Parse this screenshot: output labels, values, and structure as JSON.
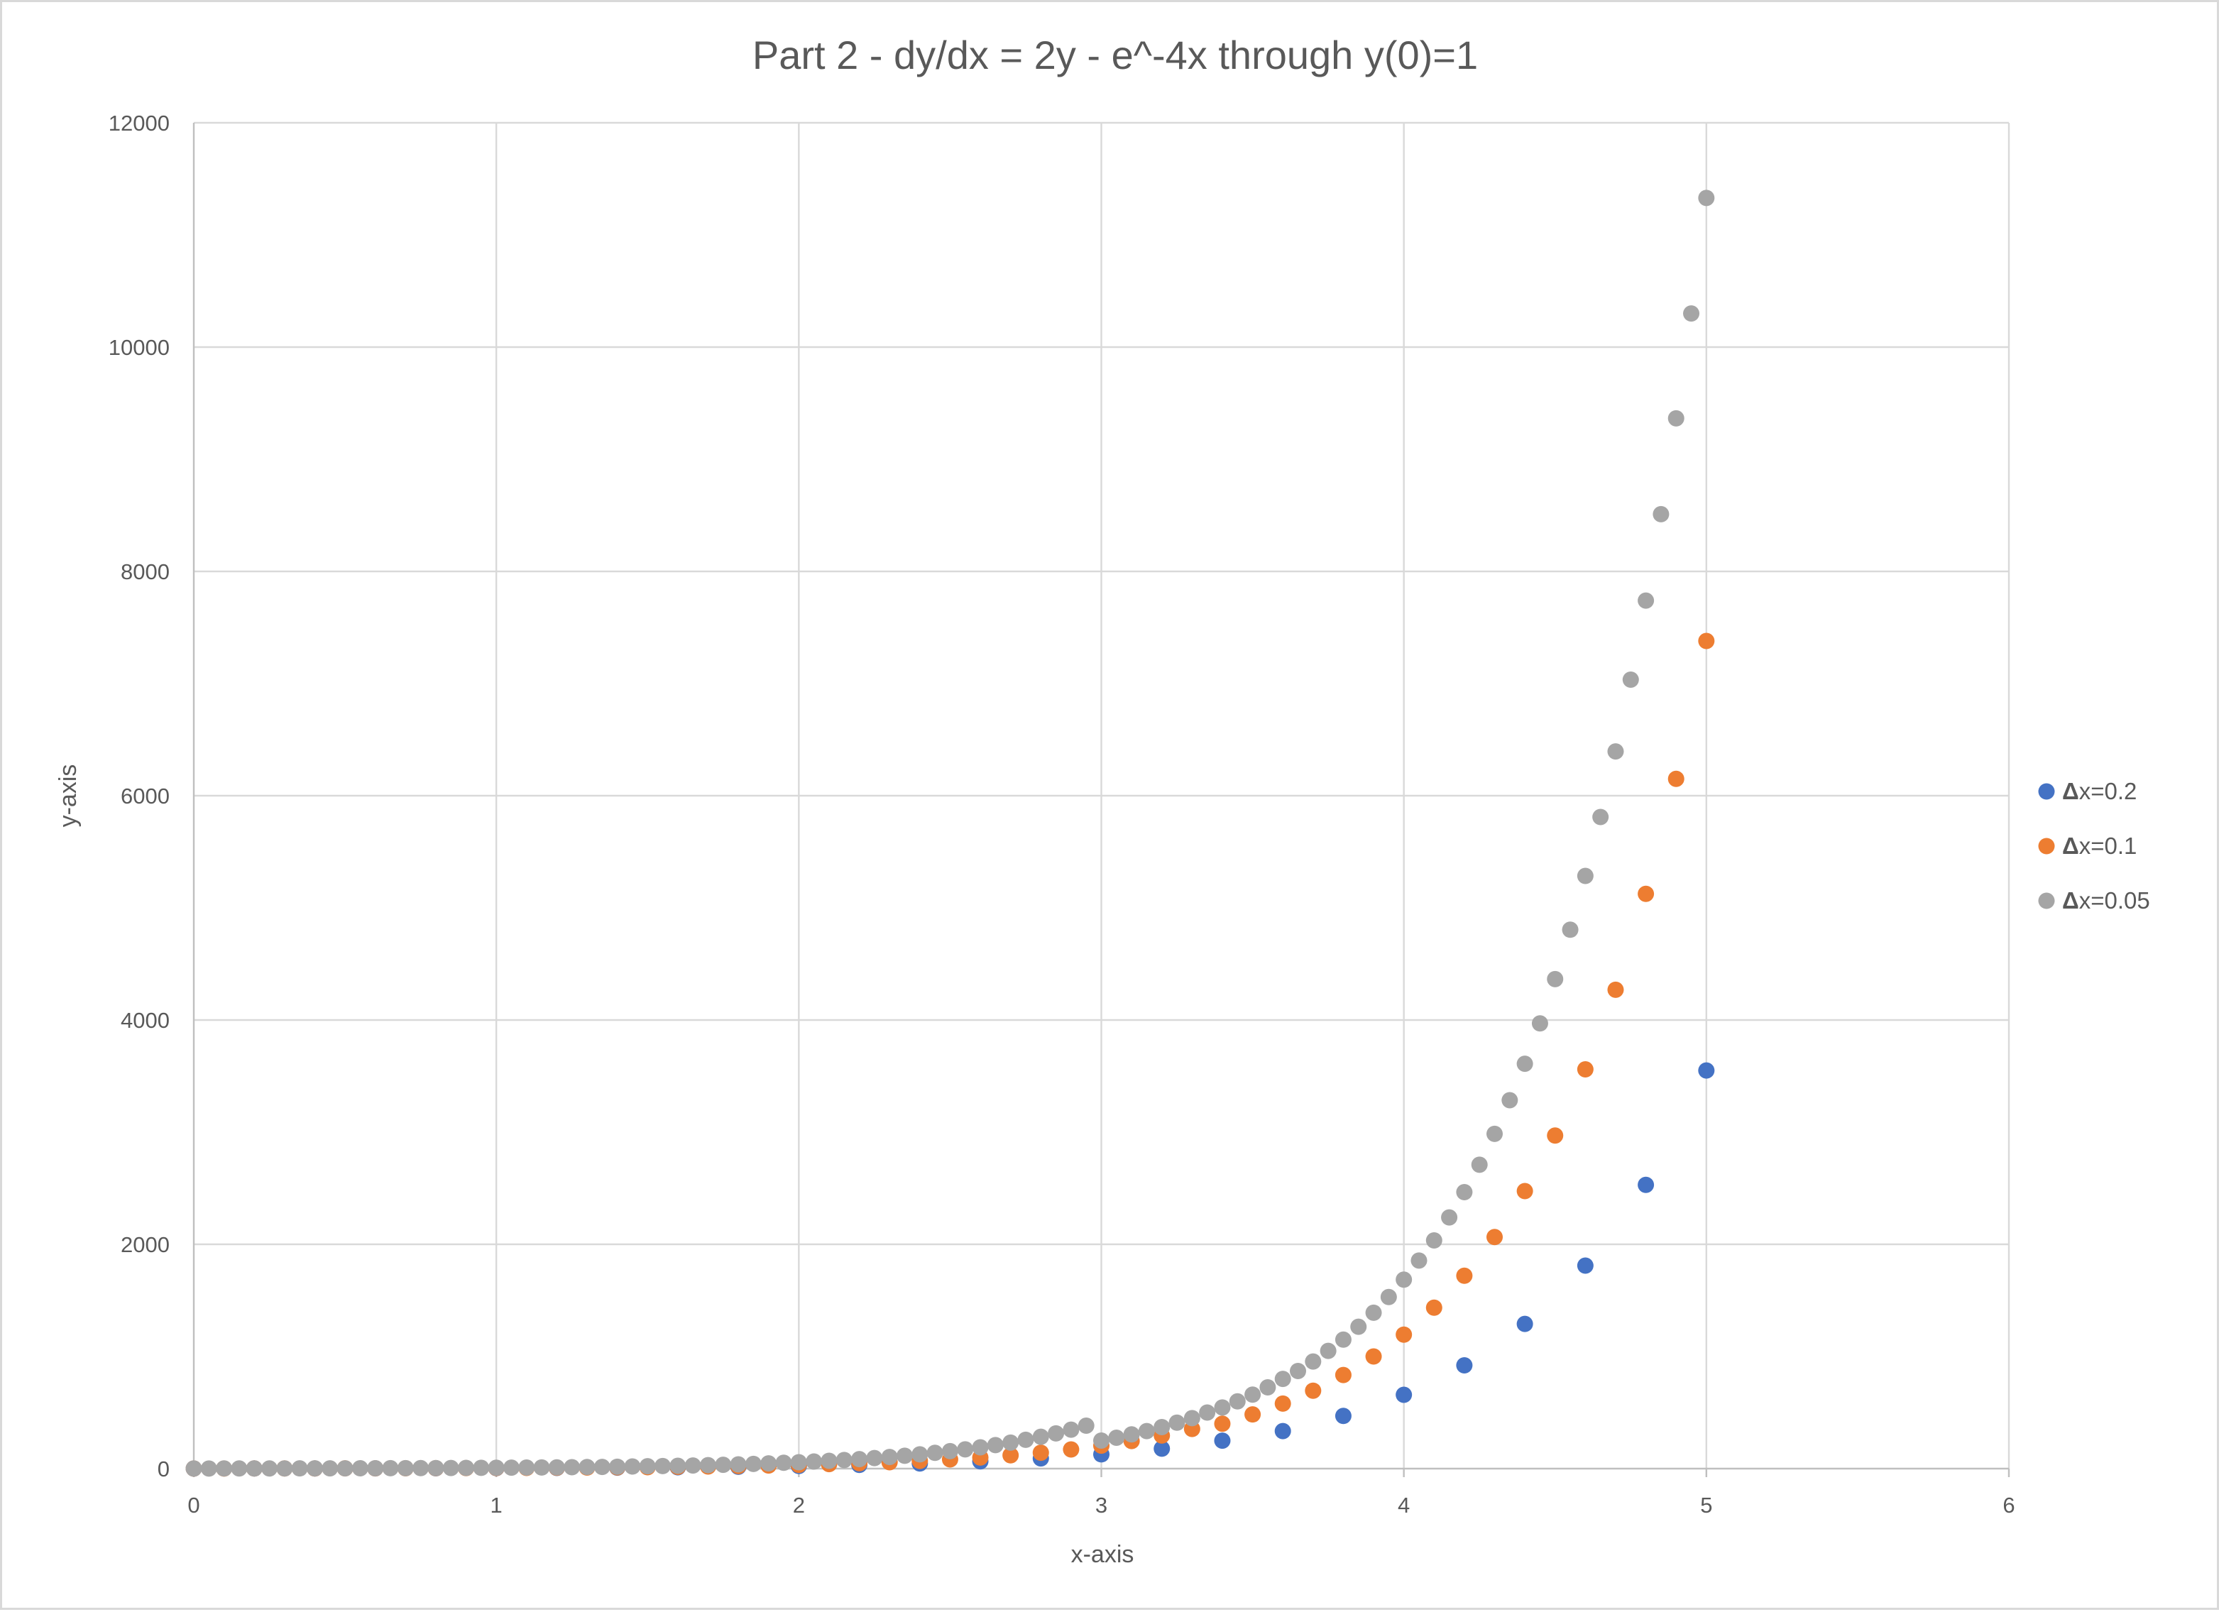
{
  "chart_data": {
    "type": "scatter",
    "title": "Part 2 - dy/dx = 2y - e^-4x through y(0)=1",
    "xlabel": "x-axis",
    "ylabel": "y-axis",
    "xlim": [
      0,
      6
    ],
    "ylim": [
      0,
      12000
    ],
    "x_ticks": [
      0,
      1,
      2,
      3,
      4,
      5,
      6
    ],
    "y_ticks": [
      0,
      2000,
      4000,
      6000,
      8000,
      10000,
      12000
    ],
    "x_tick_labels": [
      "0",
      "1",
      "2",
      "3",
      "4",
      "5",
      "6"
    ],
    "y_tick_labels": [
      "0",
      "2000",
      "4000",
      "6000",
      "8000",
      "10000",
      "12000"
    ],
    "grid": true,
    "legend_position": "right",
    "series": [
      {
        "name": "Δx=0.2",
        "name_delta": "Δ",
        "name_rest": "x=0.2",
        "color": "#4472c4",
        "x": [
          0,
          0.2,
          0.4,
          0.6,
          0.8,
          1.0,
          1.2,
          1.4,
          1.6,
          1.8,
          2.0,
          2.2,
          2.4,
          2.6,
          2.8,
          3.0,
          3.2,
          3.4,
          3.6,
          3.8,
          4.0,
          4.2,
          4.4,
          4.6,
          4.8,
          5.0
        ],
        "y": [
          1,
          1.2,
          1.6,
          2.2,
          3.1,
          4.4,
          6.2,
          8.6,
          12,
          16.9,
          23.6,
          33,
          46,
          65,
          91,
          127,
          178,
          249,
          335,
          470,
          658,
          921,
          1290,
          1810,
          2530,
          3550
        ]
      },
      {
        "name": "Δx=0.1",
        "name_delta": "Δ",
        "name_rest": "x=0.1",
        "color": "#ed7d31",
        "x": [
          0,
          0.1,
          0.2,
          0.3,
          0.4,
          0.5,
          0.6,
          0.7,
          0.8,
          0.9,
          1.0,
          1.1,
          1.2,
          1.3,
          1.4,
          1.5,
          1.6,
          1.7,
          1.8,
          1.9,
          2.0,
          2.1,
          2.2,
          2.3,
          2.4,
          2.5,
          2.6,
          2.7,
          2.8,
          2.9,
          3.0,
          3.1,
          3.2,
          3.3,
          3.4,
          3.5,
          3.6,
          3.7,
          3.8,
          3.9,
          4.0,
          4.1,
          4.2,
          4.3,
          4.4,
          4.5,
          4.6,
          4.7,
          4.8,
          4.9,
          5.0
        ],
        "y": [
          1,
          1.1,
          1.3,
          1.5,
          1.8,
          2.1,
          2.5,
          3,
          3.6,
          4.4,
          5.3,
          6.3,
          7.6,
          9.1,
          11,
          13,
          16,
          19,
          23,
          28,
          33,
          40,
          48,
          57,
          69,
          82,
          99,
          119,
          142,
          171,
          205,
          246,
          295,
          354,
          400,
          483,
          580,
          695,
          835,
          1000,
          1195,
          1435,
          1720,
          2065,
          2475,
          2970,
          3560,
          4270,
          5125,
          6150,
          7380
        ]
      },
      {
        "name": "Δx=0.05",
        "name_delta": "Δ",
        "name_rest": "x=0.05",
        "color": "#a5a5a5",
        "x": [
          0,
          0.05,
          0.1,
          0.15,
          0.2,
          0.25,
          0.3,
          0.35,
          0.4,
          0.45,
          0.5,
          0.55,
          0.6,
          0.65,
          0.7,
          0.75,
          0.8,
          0.85,
          0.9,
          0.95,
          1.0,
          1.05,
          1.1,
          1.15,
          1.2,
          1.25,
          1.3,
          1.35,
          1.4,
          1.45,
          1.5,
          1.55,
          1.6,
          1.65,
          1.7,
          1.75,
          1.8,
          1.85,
          1.9,
          1.95,
          2.0,
          2.05,
          2.1,
          2.15,
          2.2,
          2.25,
          2.3,
          2.35,
          2.4,
          2.45,
          2.5,
          2.55,
          2.6,
          2.65,
          2.7,
          2.75,
          2.8,
          2.85,
          2.9,
          2.95,
          3.0,
          3.05,
          3.1,
          3.15,
          3.2,
          3.25,
          3.3,
          3.35,
          3.4,
          3.45,
          3.5,
          3.55,
          3.6,
          3.65,
          3.7,
          3.75,
          3.8,
          3.85,
          3.9,
          3.95,
          4.0,
          4.05,
          4.1,
          4.15,
          4.2,
          4.25,
          4.3,
          4.35,
          4.4,
          4.45,
          4.5,
          4.55,
          4.6,
          4.65,
          4.7,
          4.75,
          4.8,
          4.85,
          4.9,
          4.95,
          5.0
        ],
        "y": [
          1,
          1.05,
          1.2,
          1.3,
          1.5,
          1.6,
          1.8,
          2.0,
          2.2,
          2.5,
          2.7,
          3.0,
          3.4,
          3.7,
          4.1,
          4.6,
          5.1,
          5.6,
          6.2,
          6.9,
          7.6,
          8.4,
          9.3,
          10.3,
          11.4,
          12.6,
          13.9,
          15.3,
          17,
          19,
          21,
          23,
          25,
          28,
          31,
          34,
          38,
          42,
          47,
          52,
          57,
          63,
          70,
          77,
          85,
          94,
          104,
          115,
          127,
          141,
          156,
          172,
          190,
          210,
          232,
          257,
          284,
          314,
          347,
          383,
          250,
          275,
          305,
          335,
          370,
          410,
          450,
          500,
          545,
          600,
          660,
          725,
          800,
          870,
          955,
          1050,
          1150,
          1265,
          1390,
          1530,
          1685,
          1855,
          2035,
          2240,
          2465,
          2710,
          2985,
          3285,
          3610,
          3970,
          4365,
          4805,
          5285,
          5810,
          6395,
          7035,
          7740,
          8510,
          9365,
          10300,
          11330
        ]
      }
    ]
  }
}
